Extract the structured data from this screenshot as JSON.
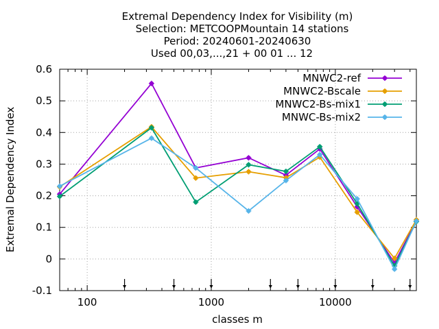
{
  "chart_data": {
    "type": "line",
    "title_lines": [
      "Extremal Dependency Index  for Visibility (m)",
      "Selection: METCOOPMountain     14 stations",
      "Period: 20240601-20240630",
      "Used 00,03,...,21 + 00 01 ... 12"
    ],
    "xlabel": "classes m",
    "ylabel": "Extremal Dependency Index",
    "x_scale": "log",
    "xlim": [
      60,
      45000
    ],
    "ylim": [
      -0.1,
      0.6
    ],
    "x_ticks": [
      {
        "value": 100,
        "label": "100"
      },
      {
        "value": 1000,
        "label": "1000"
      },
      {
        "value": 10000,
        "label": "10000"
      }
    ],
    "y_ticks": [
      {
        "value": -0.1,
        "label": "-0.1"
      },
      {
        "value": 0,
        "label": "0"
      },
      {
        "value": 0.1,
        "label": "0.1"
      },
      {
        "value": 0.2,
        "label": "0.2"
      },
      {
        "value": 0.3,
        "label": "0.3"
      },
      {
        "value": 0.4,
        "label": "0.4"
      },
      {
        "value": 0.5,
        "label": "0.5"
      },
      {
        "value": 0.6,
        "label": "0.6"
      }
    ],
    "grid": true,
    "legend_position": "top-right",
    "class_markers": [
      200,
      500,
      1000,
      3000,
      5000,
      10000,
      20000,
      40000
    ],
    "x": [
      60,
      330,
      750,
      2000,
      4000,
      7500,
      15000,
      30000,
      45000
    ],
    "series": [
      {
        "name": "MNWC2-ref",
        "color": "#9400d3",
        "values": [
          0.205,
          0.555,
          0.288,
          0.32,
          0.265,
          0.348,
          0.165,
          -0.012,
          0.12
        ]
      },
      {
        "name": "MNWC2-Bscale",
        "color": "#e69f00",
        "values": [
          0.228,
          0.418,
          0.256,
          0.276,
          0.257,
          0.322,
          0.148,
          0.002,
          0.124
        ]
      },
      {
        "name": "MNWC2-Bs-mix1",
        "color": "#009e73",
        "values": [
          0.198,
          0.415,
          0.18,
          0.298,
          0.277,
          0.355,
          0.175,
          -0.022,
          0.118
        ]
      },
      {
        "name": "MNWC-Bs-mix2",
        "color": "#56b4e9",
        "values": [
          0.23,
          0.382,
          0.288,
          0.152,
          0.248,
          0.33,
          0.19,
          -0.032,
          0.12
        ]
      }
    ]
  }
}
